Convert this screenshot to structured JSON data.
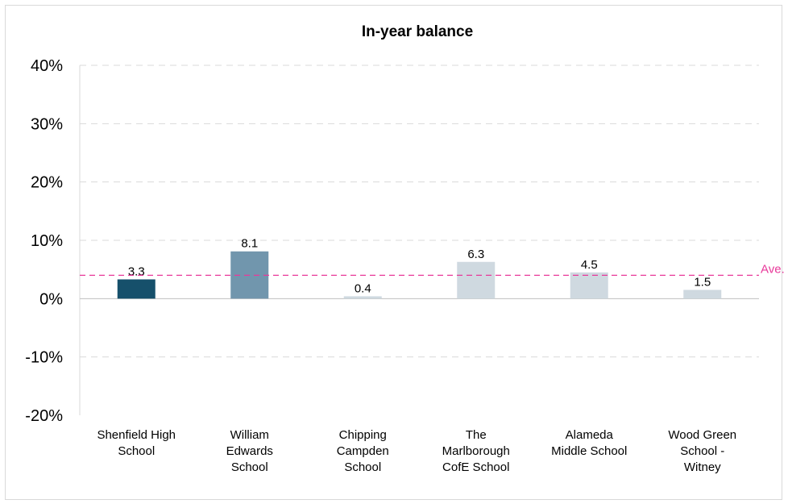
{
  "chart_data": {
    "type": "bar",
    "title": "In-year balance",
    "xlabel": "",
    "ylabel": "",
    "ylim": [
      -20,
      40
    ],
    "y_ticks": [
      40,
      30,
      20,
      10,
      0,
      -10,
      -20
    ],
    "y_tick_labels": [
      "40%",
      "30%",
      "20%",
      "10%",
      "0%",
      "-10%",
      "-20%"
    ],
    "grid": "dashed horizontal",
    "categories": [
      [
        "Shenfield High",
        "School"
      ],
      [
        "William",
        "Edwards",
        "School"
      ],
      [
        "Chipping",
        "Campden",
        "School"
      ],
      [
        "The",
        "Marlborough",
        "CofE School"
      ],
      [
        "Alameda",
        "Middle School"
      ],
      [
        "Wood Green",
        "School -",
        "Witney"
      ]
    ],
    "values": [
      3.3,
      8.1,
      0.4,
      6.3,
      4.5,
      1.5
    ],
    "data_labels": [
      "3.3",
      "8.1",
      "0.4",
      "6.3",
      "4.5",
      "1.5"
    ],
    "bar_colors": [
      "#16506b",
      "#7196ad",
      "#cfd9e0",
      "#cfd9e0",
      "#cfd9e0",
      "#cfd9e0"
    ],
    "average": {
      "value": 4.0,
      "label": "Ave.",
      "color": "#e8399a"
    }
  }
}
